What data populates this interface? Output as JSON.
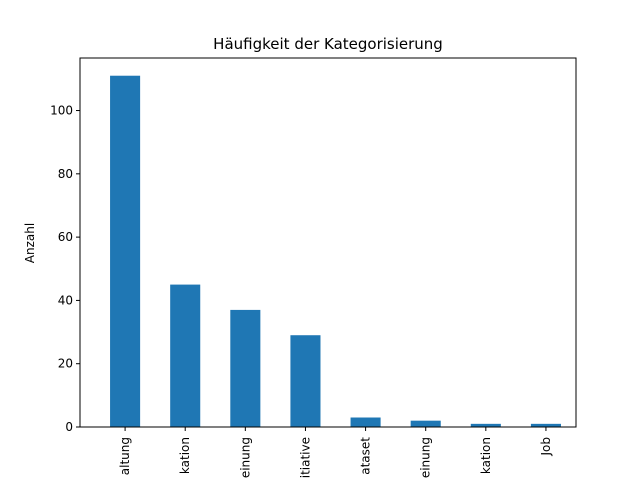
{
  "chart_data": {
    "type": "bar",
    "title": "Häufigkeit der Kategorisierung",
    "xlabel": "",
    "ylabel": "Anzahl",
    "categories": [
      "altung",
      "kation",
      "einung",
      "itiative",
      "ataset",
      "einung",
      "kation",
      "Job"
    ],
    "values": [
      111,
      45,
      37,
      29,
      3,
      2,
      1,
      1
    ],
    "yticks": [
      0,
      20,
      40,
      60,
      80,
      100
    ],
    "ylim": [
      0,
      116.6
    ],
    "grid": false,
    "legend": "none",
    "bar_color": "#1f77b4"
  }
}
